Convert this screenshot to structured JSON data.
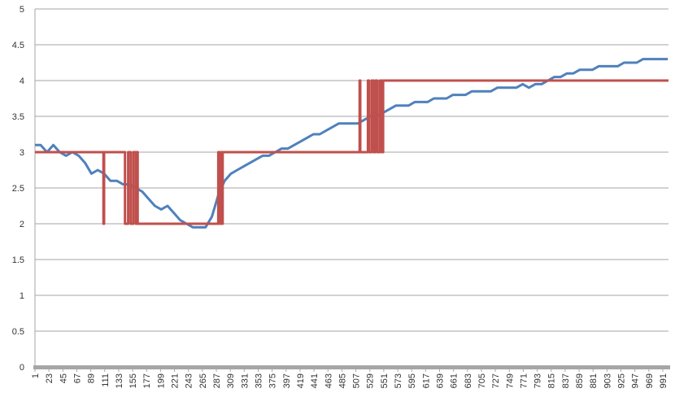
{
  "chart_data": {
    "type": "line",
    "xlim": [
      1,
      1000
    ],
    "ylim": [
      0,
      5
    ],
    "xticks": [
      1,
      23,
      45,
      67,
      89,
      111,
      133,
      155,
      177,
      199,
      221,
      243,
      265,
      287,
      309,
      331,
      353,
      375,
      397,
      419,
      441,
      463,
      485,
      507,
      529,
      551,
      573,
      595,
      617,
      639,
      661,
      683,
      705,
      727,
      749,
      771,
      793,
      815,
      837,
      859,
      881,
      903,
      925,
      947,
      969,
      991
    ],
    "yticks": [
      0,
      0.5,
      1,
      1.5,
      2,
      2.5,
      3,
      3.5,
      4,
      4.5,
      5
    ],
    "grid": true,
    "series": [
      {
        "color": "#4f81bd",
        "x": [
          1,
          10,
          20,
          30,
          40,
          50,
          60,
          70,
          80,
          90,
          100,
          110,
          120,
          130,
          140,
          150,
          160,
          170,
          180,
          190,
          200,
          210,
          220,
          230,
          240,
          250,
          260,
          270,
          280,
          290,
          300,
          310,
          320,
          330,
          340,
          350,
          360,
          370,
          380,
          390,
          400,
          410,
          420,
          430,
          440,
          450,
          460,
          470,
          480,
          490,
          500,
          510,
          520,
          530,
          540,
          550,
          560,
          570,
          580,
          590,
          600,
          610,
          620,
          630,
          640,
          650,
          660,
          670,
          680,
          690,
          700,
          710,
          720,
          730,
          740,
          750,
          760,
          770,
          780,
          790,
          800,
          810,
          820,
          830,
          840,
          850,
          860,
          870,
          880,
          890,
          900,
          910,
          920,
          930,
          940,
          950,
          960,
          970,
          980,
          990,
          999
        ],
        "values": [
          3.1,
          3.1,
          3.0,
          3.1,
          3.0,
          2.95,
          3.0,
          2.95,
          2.85,
          2.7,
          2.75,
          2.7,
          2.6,
          2.6,
          2.55,
          2.55,
          2.5,
          2.45,
          2.35,
          2.25,
          2.2,
          2.25,
          2.15,
          2.05,
          2.0,
          1.95,
          1.95,
          1.95,
          2.1,
          2.4,
          2.6,
          2.7,
          2.75,
          2.8,
          2.85,
          2.9,
          2.95,
          2.95,
          3.0,
          3.05,
          3.05,
          3.1,
          3.15,
          3.2,
          3.25,
          3.25,
          3.3,
          3.35,
          3.4,
          3.4,
          3.4,
          3.4,
          3.45,
          3.5,
          3.5,
          3.55,
          3.6,
          3.65,
          3.65,
          3.65,
          3.7,
          3.7,
          3.7,
          3.75,
          3.75,
          3.75,
          3.8,
          3.8,
          3.8,
          3.85,
          3.85,
          3.85,
          3.85,
          3.9,
          3.9,
          3.9,
          3.9,
          3.95,
          3.9,
          3.95,
          3.95,
          4.0,
          4.05,
          4.05,
          4.1,
          4.1,
          4.15,
          4.15,
          4.15,
          4.2,
          4.2,
          4.2,
          4.2,
          4.25,
          4.25,
          4.25,
          4.3,
          4.3,
          4.3,
          4.3,
          4.3
        ]
      },
      {
        "color": "#c0504d",
        "x": [
          1,
          109,
          109,
          110,
          110,
          143,
          143,
          148,
          148,
          152,
          152,
          156,
          156,
          160,
          160,
          162,
          162,
          163,
          163,
          290,
          290,
          292,
          292,
          294,
          294,
          296,
          296,
          297,
          297,
          513,
          513,
          514,
          514,
          526,
          526,
          528,
          528,
          532,
          532,
          535,
          535,
          538,
          538,
          541,
          541,
          545,
          545,
          548,
          548,
          550,
          550,
          1000
        ],
        "values": [
          3,
          3,
          2,
          2,
          3,
          3,
          2,
          2,
          3,
          3,
          2,
          2,
          3,
          3,
          2,
          2,
          3,
          3,
          2,
          2,
          3,
          3,
          2,
          2,
          3,
          3,
          2,
          2,
          3,
          3,
          4,
          4,
          3,
          3,
          4,
          4,
          3,
          3,
          4,
          4,
          3,
          3,
          4,
          4,
          3,
          3,
          4,
          4,
          3,
          3,
          4,
          4
        ]
      }
    ]
  }
}
